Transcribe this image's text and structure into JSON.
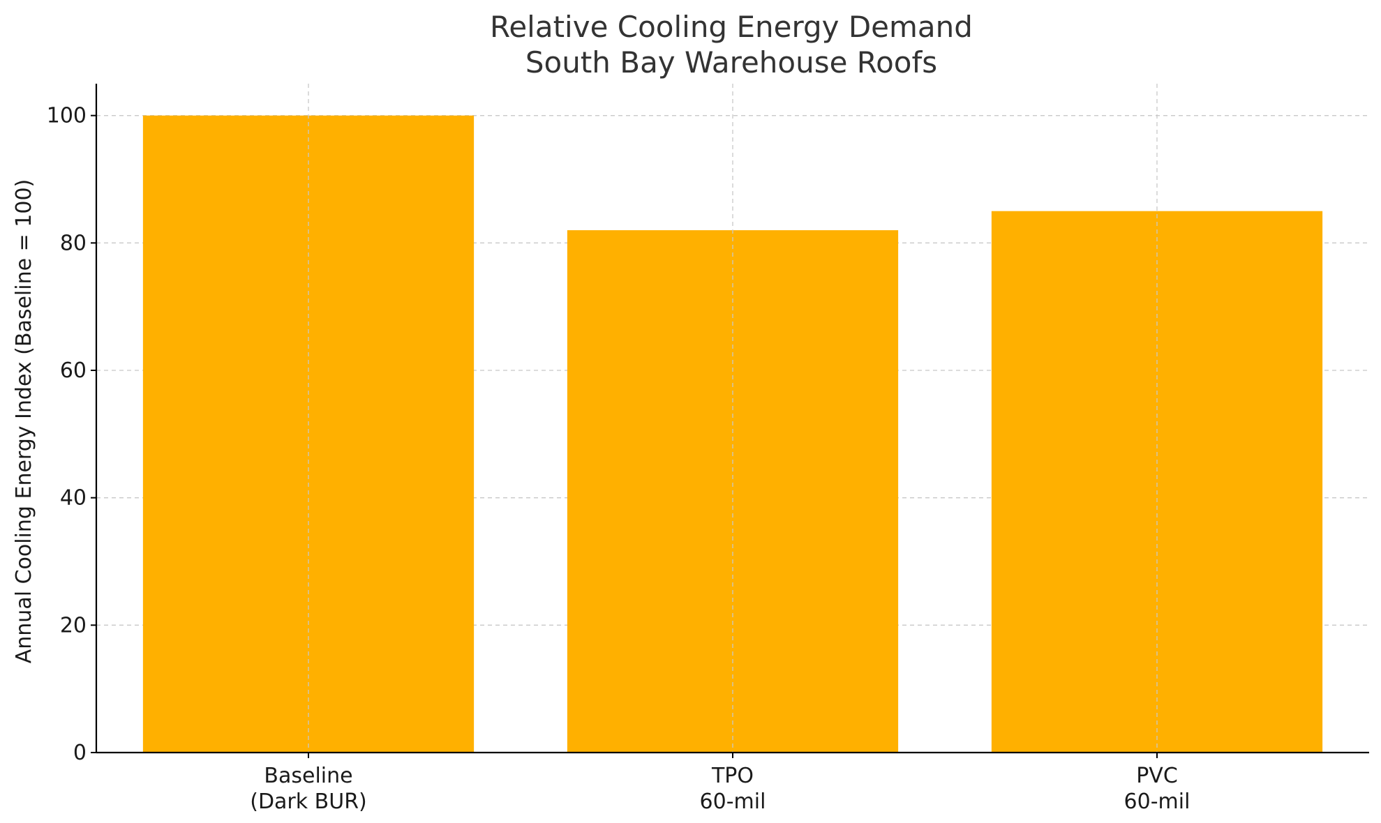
{
  "chart_data": {
    "type": "bar",
    "title": "Relative Cooling Energy Demand",
    "subtitle": "South Bay Warehouse Roofs",
    "xlabel": "",
    "ylabel": "Annual Cooling Energy Index (Baseline = 100)",
    "categories": [
      [
        "Baseline",
        "(Dark BUR)"
      ],
      [
        "TPO",
        "60-mil"
      ],
      [
        "PVC",
        "60-mil"
      ]
    ],
    "values": [
      100,
      82,
      85
    ],
    "ylim": [
      0,
      105
    ],
    "yticks": [
      0,
      20,
      40,
      60,
      80,
      100
    ],
    "grid": true,
    "colors": {
      "bar": "#FFB000",
      "grid": "#c8c8c8",
      "axis": "#000000",
      "text": "#333333"
    }
  }
}
